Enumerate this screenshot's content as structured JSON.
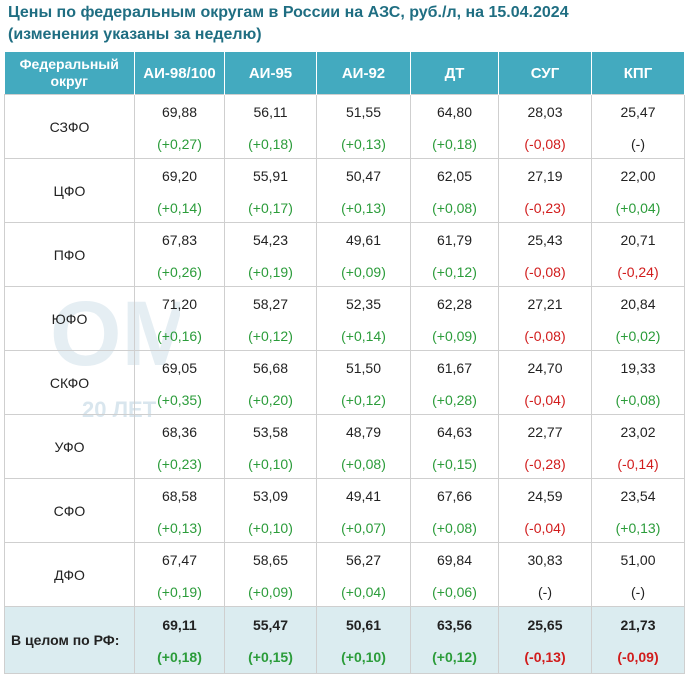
{
  "title_line1": "Цены по федеральным округам в России на АЗС, руб./л, на 15.04.2024",
  "title_line2": "(изменения указаны за неделю)",
  "watermark": {
    "main": "ОМТ",
    "sub": "20 ЛЕТ"
  },
  "columns": [
    "Федеральный округ",
    "АИ-98/100",
    "АИ-95",
    "АИ-92",
    "ДТ",
    "СУГ",
    "КПГ"
  ],
  "rows": [
    {
      "name": "СЗФО",
      "cells": [
        {
          "price": "69,88",
          "change": "(+0,27)",
          "dir": "up"
        },
        {
          "price": "56,11",
          "change": "(+0,18)",
          "dir": "up"
        },
        {
          "price": "51,55",
          "change": "(+0,13)",
          "dir": "up"
        },
        {
          "price": "64,80",
          "change": "(+0,18)",
          "dir": "up"
        },
        {
          "price": "28,03",
          "change": "(-0,08)",
          "dir": "down"
        },
        {
          "price": "25,47",
          "change": "(-)",
          "dir": "zero"
        }
      ]
    },
    {
      "name": "ЦФО",
      "cells": [
        {
          "price": "69,20",
          "change": "(+0,14)",
          "dir": "up"
        },
        {
          "price": "55,91",
          "change": "(+0,17)",
          "dir": "up"
        },
        {
          "price": "50,47",
          "change": "(+0,13)",
          "dir": "up"
        },
        {
          "price": "62,05",
          "change": "(+0,08)",
          "dir": "up"
        },
        {
          "price": "27,19",
          "change": "(-0,23)",
          "dir": "down"
        },
        {
          "price": "22,00",
          "change": "(+0,04)",
          "dir": "up"
        }
      ]
    },
    {
      "name": "ПФО",
      "cells": [
        {
          "price": "67,83",
          "change": "(+0,26)",
          "dir": "up"
        },
        {
          "price": "54,23",
          "change": "(+0,19)",
          "dir": "up"
        },
        {
          "price": "49,61",
          "change": "(+0,09)",
          "dir": "up"
        },
        {
          "price": "61,79",
          "change": "(+0,12)",
          "dir": "up"
        },
        {
          "price": "25,43",
          "change": "(-0,08)",
          "dir": "down"
        },
        {
          "price": "20,71",
          "change": "(-0,24)",
          "dir": "down"
        }
      ]
    },
    {
      "name": "ЮФО",
      "cells": [
        {
          "price": "71,20",
          "change": "(+0,16)",
          "dir": "up"
        },
        {
          "price": "58,27",
          "change": "(+0,12)",
          "dir": "up"
        },
        {
          "price": "52,35",
          "change": "(+0,14)",
          "dir": "up"
        },
        {
          "price": "62,28",
          "change": "(+0,09)",
          "dir": "up"
        },
        {
          "price": "27,21",
          "change": "(-0,08)",
          "dir": "down"
        },
        {
          "price": "20,84",
          "change": "(+0,02)",
          "dir": "up"
        }
      ]
    },
    {
      "name": "СКФО",
      "cells": [
        {
          "price": "69,05",
          "change": "(+0,35)",
          "dir": "up"
        },
        {
          "price": "56,68",
          "change": "(+0,20)",
          "dir": "up"
        },
        {
          "price": "51,50",
          "change": "(+0,12)",
          "dir": "up"
        },
        {
          "price": "61,67",
          "change": "(+0,28)",
          "dir": "up"
        },
        {
          "price": "24,70",
          "change": "(-0,04)",
          "dir": "down"
        },
        {
          "price": "19,33",
          "change": "(+0,08)",
          "dir": "up"
        }
      ]
    },
    {
      "name": "УФО",
      "cells": [
        {
          "price": "68,36",
          "change": "(+0,23)",
          "dir": "up"
        },
        {
          "price": "53,58",
          "change": "(+0,10)",
          "dir": "up"
        },
        {
          "price": "48,79",
          "change": "(+0,08)",
          "dir": "up"
        },
        {
          "price": "64,63",
          "change": "(+0,15)",
          "dir": "up"
        },
        {
          "price": "22,77",
          "change": "(-0,28)",
          "dir": "down"
        },
        {
          "price": "23,02",
          "change": "(-0,14)",
          "dir": "down"
        }
      ]
    },
    {
      "name": "СФО",
      "cells": [
        {
          "price": "68,58",
          "change": "(+0,13)",
          "dir": "up"
        },
        {
          "price": "53,09",
          "change": "(+0,10)",
          "dir": "up"
        },
        {
          "price": "49,41",
          "change": "(+0,07)",
          "dir": "up"
        },
        {
          "price": "67,66",
          "change": "(+0,08)",
          "dir": "up"
        },
        {
          "price": "24,59",
          "change": "(-0,04)",
          "dir": "down"
        },
        {
          "price": "23,54",
          "change": "(+0,13)",
          "dir": "up"
        }
      ]
    },
    {
      "name": "ДФО",
      "cells": [
        {
          "price": "67,47",
          "change": "(+0,19)",
          "dir": "up"
        },
        {
          "price": "58,65",
          "change": "(+0,09)",
          "dir": "up"
        },
        {
          "price": "56,27",
          "change": "(+0,04)",
          "dir": "up"
        },
        {
          "price": "69,84",
          "change": "(+0,06)",
          "dir": "up"
        },
        {
          "price": "30,83",
          "change": "(-)",
          "dir": "zero"
        },
        {
          "price": "51,00",
          "change": "(-)",
          "dir": "zero"
        }
      ]
    }
  ],
  "total": {
    "name": "В целом по РФ:",
    "cells": [
      {
        "price": "69,11",
        "change": "(+0,18)",
        "dir": "up"
      },
      {
        "price": "55,47",
        "change": "(+0,15)",
        "dir": "up"
      },
      {
        "price": "50,61",
        "change": "(+0,10)",
        "dir": "up"
      },
      {
        "price": "63,56",
        "change": "(+0,12)",
        "dir": "up"
      },
      {
        "price": "25,65",
        "change": "(-0,13)",
        "dir": "down"
      },
      {
        "price": "21,73",
        "change": "(-0,09)",
        "dir": "down"
      }
    ]
  },
  "colors": {
    "header": "#43aabf",
    "title": "#1f6e82",
    "up": "#2b9c3a",
    "down": "#d11c1c",
    "total_bg": "#dbecf0"
  }
}
